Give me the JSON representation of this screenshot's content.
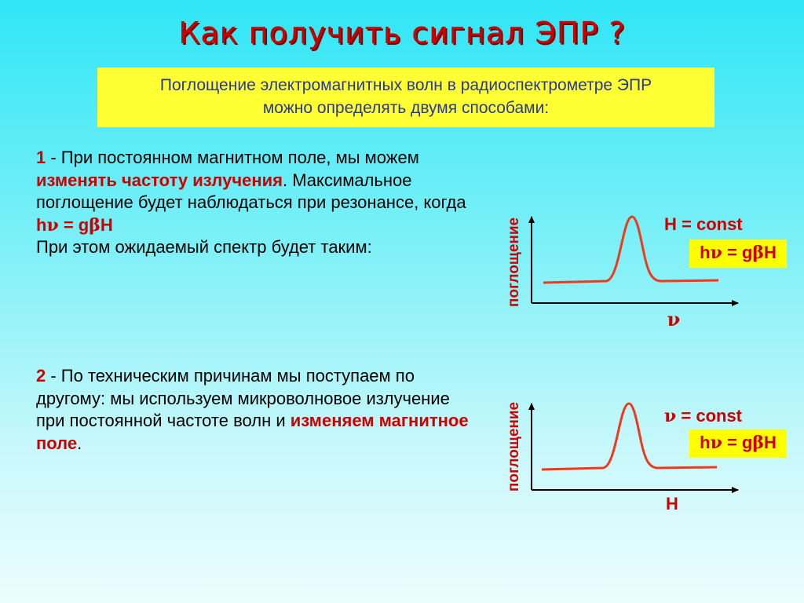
{
  "title": "Как получить сигнал ЭПР ?",
  "intro": {
    "line1": "Поглощение электромагнитных волн в радиоспектрометре ЭПР",
    "line2": "можно определять двумя способами:"
  },
  "method1": {
    "number": "1",
    "text_a": " - При постоянном магнитном поле, мы можем ",
    "highlight": "изменять частоту излучения",
    "text_b": ". Максимальное поглощение будет наблюдаться при резонансе, когда ",
    "formula_h": "h",
    "formula_nu": "ν",
    "formula_eq": " = g",
    "formula_beta": "β",
    "formula_H": "H",
    "text_c": "При этом ожидаемый спектр будет таким:"
  },
  "method2": {
    "number": "2",
    "text_a": " - По техническим причинам мы поступаем по другому:  мы используем микроволновое излучение при постоянной частоте волн и ",
    "highlight": "изменяем магнитное поле",
    "text_b": "."
  },
  "graph1": {
    "ylabel": "поглощение",
    "xlabel": "ν",
    "condition": "H = const",
    "resonance": {
      "h": "h",
      "nu": "ν",
      "eq": " = g",
      "beta": "β",
      "H": "H"
    }
  },
  "graph2": {
    "ylabel": "поглощение",
    "xlabel": "H",
    "condition_nu": "ν",
    "condition_rest": " = const",
    "resonance": {
      "h": "h",
      "nu": "ν",
      "eq": " = g",
      "beta": "β",
      "H": "H"
    }
  },
  "colors": {
    "title": "#cc0000",
    "intro_bg": "#ffff33",
    "curve": "#ee3a1c",
    "axis": "#000000"
  }
}
